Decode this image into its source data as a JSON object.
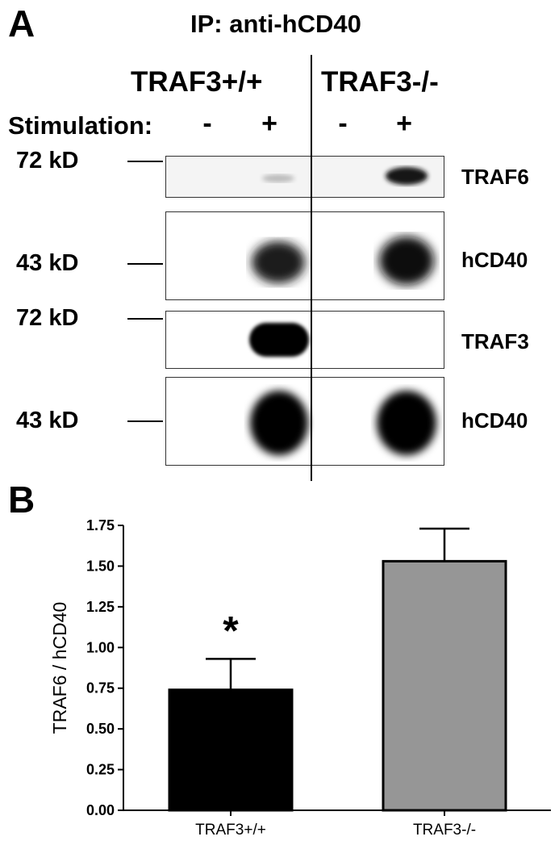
{
  "panel_a": {
    "letter": "A",
    "title": "IP: anti-hCD40",
    "genotypes": [
      "TRAF3+/+",
      "TRAF3-/-"
    ],
    "stimulation_label": "Stimulation:",
    "stimulation_signs": [
      "-",
      "+",
      "-",
      "+"
    ],
    "markers": [
      "72 kD",
      "43 kD",
      "72 kD",
      "43 kD"
    ],
    "blots": [
      {
        "label": "TRAF6",
        "band_intensity": [
          0,
          0.2,
          0,
          0.9
        ]
      },
      {
        "label": "hCD40",
        "band_intensity": [
          0,
          0.85,
          0,
          0.9
        ]
      },
      {
        "label": "TRAF3",
        "band_intensity": [
          0,
          1.0,
          0,
          0
        ]
      },
      {
        "label": "hCD40",
        "band_intensity": [
          0,
          1.0,
          0,
          1.0
        ]
      }
    ]
  },
  "panel_b": {
    "letter": "B",
    "annotation": "*"
  },
  "chart_data": {
    "type": "bar",
    "categories": [
      "TRAF3+/+",
      "TRAF3-/-"
    ],
    "values": [
      0.74,
      1.53
    ],
    "errors": [
      0.19,
      0.2
    ],
    "ylabel": "TRAF6 / hCD40",
    "xlabel": "",
    "ylim": [
      0,
      1.75
    ],
    "yticks": [
      "0.00",
      "0.25",
      "0.50",
      "0.75",
      "1.00",
      "1.25",
      "1.50",
      "1.75"
    ],
    "bar_colors": [
      "#000000",
      "#969696"
    ],
    "annotations": [
      {
        "category": "TRAF3+/+",
        "text": "*"
      }
    ]
  }
}
